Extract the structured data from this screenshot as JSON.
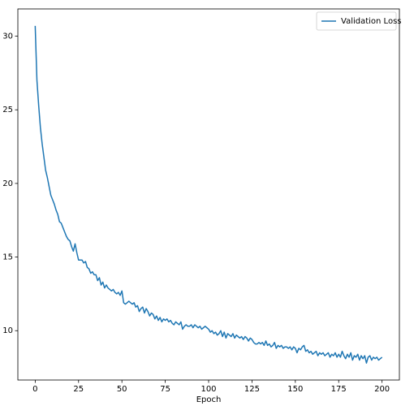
{
  "chart_data": {
    "type": "line",
    "xlabel": "Epoch",
    "x": [
      0,
      1,
      2,
      3,
      4,
      5,
      6,
      7,
      8,
      9,
      10,
      11,
      12,
      13,
      14,
      15,
      16,
      17,
      18,
      19,
      20,
      21,
      22,
      23,
      24,
      25,
      26,
      27,
      28,
      29,
      30,
      31,
      32,
      33,
      34,
      35,
      36,
      37,
      38,
      39,
      40,
      41,
      42,
      43,
      44,
      45,
      46,
      47,
      48,
      49,
      50,
      51,
      52,
      53,
      54,
      55,
      56,
      57,
      58,
      59,
      60,
      61,
      62,
      63,
      64,
      65,
      66,
      67,
      68,
      69,
      70,
      71,
      72,
      73,
      74,
      75,
      76,
      77,
      78,
      79,
      80,
      81,
      82,
      83,
      84,
      85,
      86,
      87,
      88,
      89,
      90,
      91,
      92,
      93,
      94,
      95,
      96,
      97,
      98,
      99,
      100,
      101,
      102,
      103,
      104,
      105,
      106,
      107,
      108,
      109,
      110,
      111,
      112,
      113,
      114,
      115,
      116,
      117,
      118,
      119,
      120,
      121,
      122,
      123,
      124,
      125,
      126,
      127,
      128,
      129,
      130,
      131,
      132,
      133,
      134,
      135,
      136,
      137,
      138,
      139,
      140,
      141,
      142,
      143,
      144,
      145,
      146,
      147,
      148,
      149,
      150,
      151,
      152,
      153,
      154,
      155,
      156,
      157,
      158,
      159,
      160,
      161,
      162,
      163,
      164,
      165,
      166,
      167,
      168,
      169,
      170,
      171,
      172,
      173,
      174,
      175,
      176,
      177,
      178,
      179,
      180,
      181,
      182,
      183,
      184,
      185,
      186,
      187,
      188,
      189,
      190,
      191,
      192,
      193,
      194,
      195,
      196,
      197,
      198,
      199,
      200
    ],
    "series": [
      {
        "name": "Validation Loss",
        "color": "#1f77b4",
        "values": [
          30.7,
          27.0,
          25.3,
          23.8,
          22.7,
          21.8,
          20.9,
          20.4,
          19.8,
          19.2,
          18.9,
          18.6,
          18.2,
          17.9,
          17.4,
          17.3,
          17.0,
          16.7,
          16.4,
          16.2,
          16.1,
          15.7,
          15.4,
          15.9,
          15.3,
          14.8,
          14.8,
          14.8,
          14.6,
          14.7,
          14.3,
          14.2,
          13.9,
          14.0,
          13.8,
          13.8,
          13.4,
          13.6,
          13.1,
          13.3,
          12.9,
          13.1,
          12.9,
          12.8,
          12.7,
          12.8,
          12.6,
          12.5,
          12.6,
          12.4,
          12.7,
          11.9,
          11.8,
          11.9,
          12.0,
          11.9,
          11.8,
          11.9,
          11.6,
          11.7,
          11.3,
          11.5,
          11.6,
          11.2,
          11.5,
          11.3,
          11.0,
          11.2,
          11.1,
          10.8,
          11.0,
          10.7,
          10.9,
          10.6,
          10.8,
          10.7,
          10.8,
          10.6,
          10.7,
          10.5,
          10.4,
          10.6,
          10.5,
          10.4,
          10.6,
          10.1,
          10.3,
          10.4,
          10.3,
          10.3,
          10.4,
          10.2,
          10.4,
          10.3,
          10.2,
          10.3,
          10.1,
          10.2,
          10.3,
          10.2,
          10.1,
          9.9,
          10.0,
          9.8,
          9.9,
          9.7,
          9.8,
          10.0,
          9.6,
          9.9,
          9.5,
          9.8,
          9.7,
          9.6,
          9.8,
          9.5,
          9.7,
          9.6,
          9.5,
          9.6,
          9.4,
          9.6,
          9.5,
          9.3,
          9.5,
          9.4,
          9.2,
          9.1,
          9.1,
          9.2,
          9.1,
          9.2,
          9.0,
          9.3,
          9.0,
          9.1,
          8.9,
          9.0,
          9.2,
          8.8,
          9.0,
          8.9,
          9.0,
          8.8,
          8.9,
          8.9,
          8.8,
          8.9,
          8.7,
          8.9,
          8.8,
          8.5,
          8.8,
          8.7,
          8.9,
          9.0,
          8.6,
          8.7,
          8.5,
          8.6,
          8.4,
          8.5,
          8.6,
          8.3,
          8.5,
          8.4,
          8.5,
          8.3,
          8.4,
          8.5,
          8.2,
          8.4,
          8.3,
          8.5,
          8.2,
          8.4,
          8.2,
          8.6,
          8.3,
          8.1,
          8.4,
          8.2,
          8.5,
          8.0,
          8.3,
          8.2,
          8.4,
          8.0,
          8.3,
          8.1,
          8.3,
          7.8,
          8.2,
          8.3,
          8.0,
          8.2,
          8.1,
          8.2,
          8.0,
          8.1,
          8.2
        ]
      }
    ],
    "xlim": [
      -10,
      210
    ],
    "ylim": [
      6.65,
      31.85
    ],
    "xticks": [
      0,
      25,
      50,
      75,
      100,
      125,
      150,
      175,
      200
    ],
    "yticks": [
      10,
      15,
      20,
      25,
      30
    ],
    "grid": false,
    "legend": "upper right"
  }
}
